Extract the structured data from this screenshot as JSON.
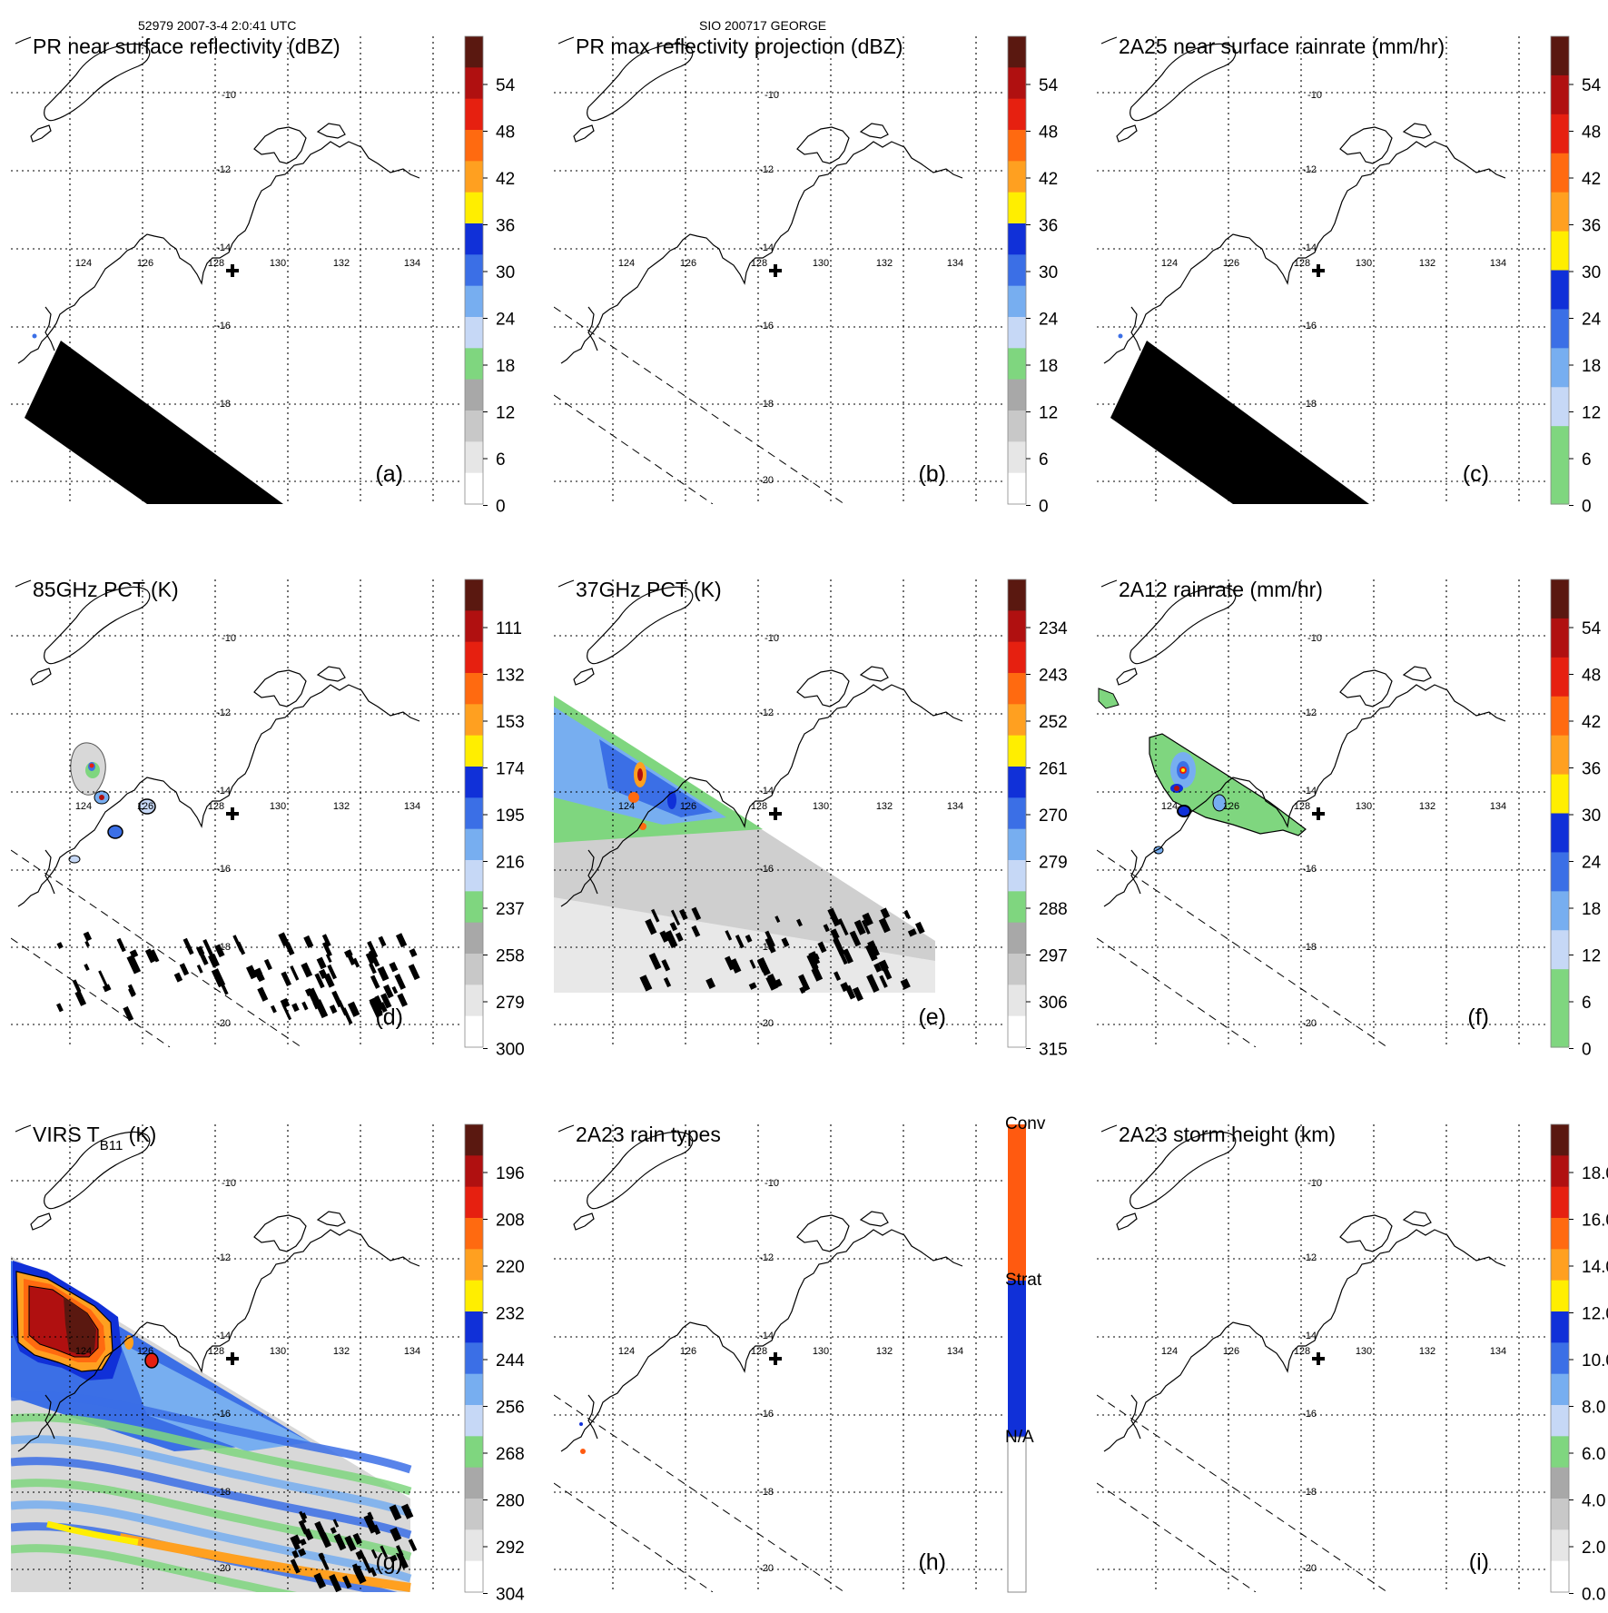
{
  "header": {
    "orbit_time": "52979 2007-3-4 2:0:41 UTC",
    "storm": "SIO 200717 GEORGE"
  },
  "map": {
    "lon_labels": [
      "124",
      "126",
      "128",
      "130",
      "132",
      "134"
    ],
    "lat_labels": [
      "-10",
      "-12",
      "-14",
      "-16",
      "-18",
      "-20"
    ],
    "center_marker": "storm-center-cross-icon"
  },
  "colors": {
    "wht": "#ffffff",
    "gry1": "#e6e6e6",
    "gry2": "#c8c8c8",
    "gry3": "#a8a8a8",
    "grn": "#7fd67f",
    "lblu": "#c6d8f6",
    "blu1": "#77aef0",
    "blu2": "#3b6fe6",
    "blu3": "#1030d8",
    "yel": "#ffee00",
    "ora1": "#ffa020",
    "ora2": "#ff6a10",
    "red1": "#e62010",
    "red2": "#b01010",
    "dred": "#5a1810",
    "conv": "#ff5a10",
    "strat": "#1030d8"
  },
  "panels": [
    {
      "title": "PR near surface reflectivity (dBZ)",
      "letter": "(a)",
      "ticks": [
        "54",
        "48",
        "42",
        "36",
        "30",
        "24",
        "18",
        "12",
        "6",
        "0"
      ],
      "bar": [
        "dred",
        "red2",
        "red1",
        "ora2",
        "ora1",
        "yel",
        "blu3",
        "blu2",
        "blu1",
        "lblu",
        "grn",
        "gry3",
        "gry2",
        "gry1",
        "wht"
      ],
      "swath_fill": "black"
    },
    {
      "title": "PR max reflectivity projection (dBZ)",
      "letter": "(b)",
      "ticks": [
        "54",
        "48",
        "42",
        "36",
        "30",
        "24",
        "18",
        "12",
        "6",
        "0"
      ],
      "bar": [
        "dred",
        "red2",
        "red1",
        "ora2",
        "ora1",
        "yel",
        "blu3",
        "blu2",
        "blu1",
        "lblu",
        "grn",
        "gry3",
        "gry2",
        "gry1",
        "wht"
      ],
      "swath_fill": "none"
    },
    {
      "title": "2A25 near surface rainrate (mm/hr)",
      "letter": "(c)",
      "ticks": [
        "54",
        "48",
        "42",
        "36",
        "30",
        "24",
        "18",
        "12",
        "6",
        "0"
      ],
      "bar": [
        "dred",
        "red2",
        "red1",
        "ora2",
        "ora1",
        "yel",
        "blu3",
        "blu2",
        "blu1",
        "lblu",
        "grn",
        "grn"
      ],
      "swath_fill": "black"
    },
    {
      "title": "85GHz PCT (K)",
      "letter": "(d)",
      "ticks": [
        "111",
        "132",
        "153",
        "174",
        "195",
        "216",
        "237",
        "258",
        "279",
        "300"
      ],
      "bar": [
        "dred",
        "red2",
        "red1",
        "ora2",
        "ora1",
        "yel",
        "blu3",
        "blu2",
        "blu1",
        "lblu",
        "grn",
        "gry3",
        "gry2",
        "gry1",
        "wht"
      ],
      "swath_fill": "tb85"
    },
    {
      "title": "37GHz PCT (K)",
      "letter": "(e)",
      "ticks": [
        "234",
        "243",
        "252",
        "261",
        "270",
        "279",
        "288",
        "297",
        "306",
        "315"
      ],
      "bar": [
        "dred",
        "red2",
        "red1",
        "ora2",
        "ora1",
        "yel",
        "blu3",
        "blu2",
        "blu1",
        "lblu",
        "grn",
        "gry3",
        "gry2",
        "gry1",
        "wht"
      ],
      "swath_fill": "tb37"
    },
    {
      "title": "2A12 rainrate (mm/hr)",
      "letter": "(f)",
      "ticks": [
        "54",
        "48",
        "42",
        "36",
        "30",
        "24",
        "18",
        "12",
        "6",
        "0"
      ],
      "bar": [
        "dred",
        "red2",
        "red1",
        "ora2",
        "ora1",
        "yel",
        "blu3",
        "blu2",
        "blu1",
        "lblu",
        "grn",
        "grn"
      ],
      "swath_fill": "rain"
    },
    {
      "title": "VIRS T",
      "title_sub": "B11",
      "title_unit": " (K)",
      "letter": "(g)",
      "ticks": [
        "196",
        "208",
        "220",
        "232",
        "244",
        "256",
        "268",
        "280",
        "292",
        "304"
      ],
      "bar": [
        "dred",
        "red2",
        "red1",
        "ora2",
        "ora1",
        "yel",
        "blu3",
        "blu2",
        "blu1",
        "lblu",
        "grn",
        "gry3",
        "gry2",
        "gry1",
        "wht"
      ],
      "swath_fill": "virs"
    },
    {
      "title": "2A23 rain types",
      "letter": "(h)",
      "categories": [
        "Conv",
        "Strat",
        "N/A"
      ],
      "swath_fill": "none"
    },
    {
      "title": "2A23 storm height (km)",
      "letter": "(i)",
      "ticks": [
        "18.0",
        "16.0",
        "14.0",
        "12.0",
        "10.0",
        "8.0",
        "6.0",
        "4.0",
        "2.0",
        "0.0"
      ],
      "bar": [
        "dred",
        "red2",
        "red1",
        "ora2",
        "ora1",
        "yel",
        "blu3",
        "blu2",
        "blu1",
        "lblu",
        "grn",
        "gry3",
        "gry2",
        "gry1",
        "wht"
      ],
      "swath_fill": "none"
    }
  ]
}
